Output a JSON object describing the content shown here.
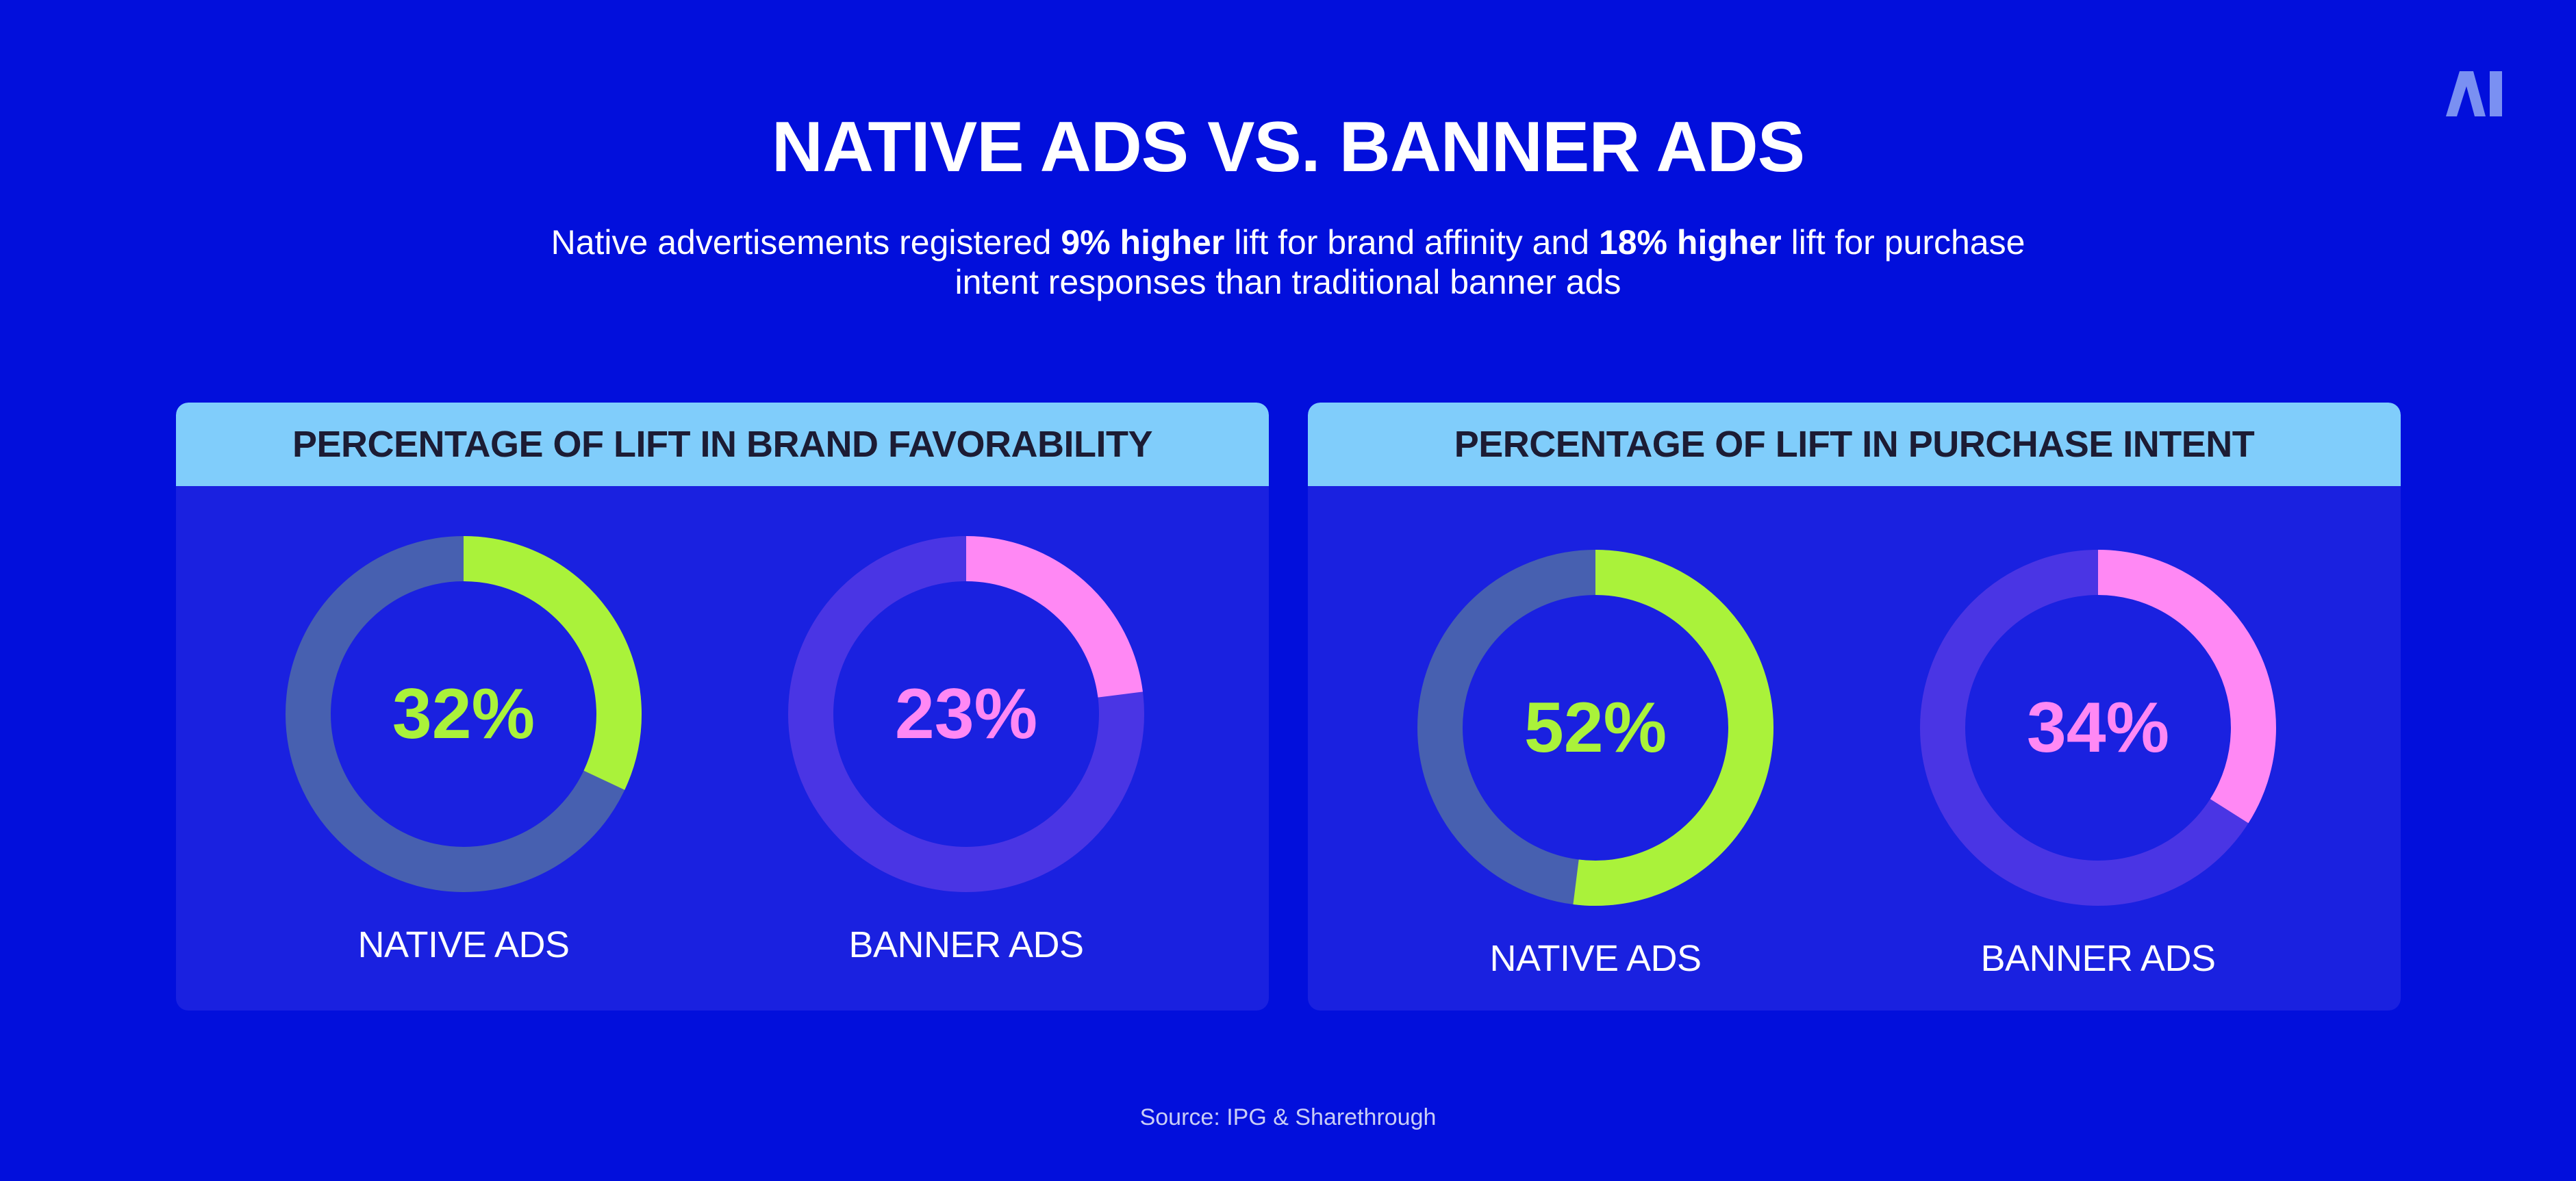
{
  "header": {
    "title": "NATIVE ADS VS. BANNER ADS",
    "subtitle_parts": [
      {
        "text": "Native advertisements registered ",
        "bold": false
      },
      {
        "text": "9% higher",
        "bold": true
      },
      {
        "text": " lift for brand affinity and ",
        "bold": false
      },
      {
        "text": "18% higher",
        "bold": true
      },
      {
        "text": " lift for purchase intent responses than traditional banner ads",
        "bold": false
      }
    ],
    "logo_text": "AI"
  },
  "colors": {
    "background": "#020fdc",
    "panel": "#1a21e0",
    "panel_header": "#80cdfb",
    "native": "#aaf23a",
    "native_track": "#4760b0",
    "banner": "#ff88f4",
    "banner_track": "#4a35e4"
  },
  "chart_data": [
    {
      "type": "pie",
      "title": "PERCENTAGE OF LIFT IN BRAND FAVORABILITY",
      "series": [
        {
          "name": "NATIVE ADS",
          "value": 32,
          "label": "32%"
        },
        {
          "name": "BANNER ADS",
          "value": 23,
          "label": "23%"
        }
      ]
    },
    {
      "type": "pie",
      "title": "PERCENTAGE OF LIFT IN PURCHASE INTENT",
      "series": [
        {
          "name": "NATIVE ADS",
          "value": 52,
          "label": "52%"
        },
        {
          "name": "BANNER ADS",
          "value": 34,
          "label": "34%"
        }
      ]
    }
  ],
  "footer": {
    "source": "Source: IPG & Sharethrough"
  }
}
